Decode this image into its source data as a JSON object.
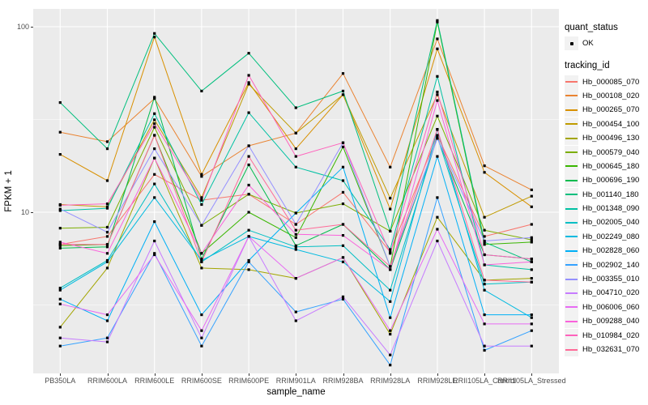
{
  "figure": {
    "background": "#FFFFFF",
    "panel_background": "#EBEBEB",
    "grid_color": "#FFFFFF",
    "tick_label_color": "#4D4D4D",
    "marker_color": "#000000",
    "legend_key_background": "#F2F2F2"
  },
  "legend": {
    "position": "right",
    "quant_status": {
      "title": "quant_status",
      "items": [
        {
          "label": "OK",
          "marker": "black-point"
        }
      ]
    },
    "tracking_id": {
      "title": "tracking_id"
    }
  },
  "chart_data": {
    "type": "line",
    "title": "",
    "xlabel": "sample_name",
    "ylabel": "FPKM + 1",
    "grid": true,
    "legend_position": "right",
    "marker": "black point at every vertex (quant_status = OK)",
    "x_categories": [
      "PB350LA",
      "RRIM600LA",
      "RRIM600LE",
      "RRIM600SE",
      "RRIM600PE",
      "RRIM901LA",
      "RRIM928BA",
      "RRIM928LA",
      "RRIM928LE",
      "RRII105LA_Control",
      "RRII105LA_Stressed"
    ],
    "y_axis": {
      "scale": "log10",
      "ticks": [
        {
          "label": "10",
          "value": 10
        },
        {
          "label": "100",
          "value": 100
        }
      ],
      "minor_gridlines": [
        3.1623,
        31.6228
      ],
      "range_approx": [
        1.35,
        125
      ]
    },
    "series": [
      {
        "name": "Hb_000085_070",
        "color": "#F8766D",
        "values": [
          6.7,
          7.4,
          16.0,
          11.6,
          12.5,
          8.6,
          12.8,
          6.1,
          26.0,
          7.4,
          8.6
        ]
      },
      {
        "name": "Hb_000108_020",
        "color": "#EA8331",
        "values": [
          27.0,
          24.0,
          41.0,
          15.6,
          22.8,
          26.7,
          56.0,
          17.5,
          86.0,
          17.8,
          13.2
        ]
      },
      {
        "name": "Hb_000265_070",
        "color": "#D89000",
        "values": [
          20.5,
          14.8,
          88.0,
          16.0,
          50.0,
          22.0,
          43.0,
          10.4,
          76.0,
          16.4,
          10.7
        ]
      },
      {
        "name": "Hb_000454_100",
        "color": "#C09B00",
        "values": [
          11.0,
          10.7,
          31.5,
          12.0,
          49.0,
          26.7,
          43.0,
          11.9,
          43.0,
          9.4,
          12.2
        ]
      },
      {
        "name": "Hb_000496_130",
        "color": "#A3A500",
        "values": [
          2.4,
          5.0,
          19.6,
          5.0,
          4.9,
          4.4,
          5.7,
          2.2,
          9.4,
          4.3,
          4.4
        ]
      },
      {
        "name": "Hb_000579_040",
        "color": "#7CAE00",
        "values": [
          8.2,
          8.3,
          28.7,
          8.5,
          12.5,
          9.9,
          11.1,
          7.9,
          33.0,
          8.0,
          7.1
        ]
      },
      {
        "name": "Hb_000645_180",
        "color": "#39B600",
        "values": [
          6.6,
          6.7,
          26.0,
          6.0,
          10.0,
          7.3,
          22.5,
          5.1,
          106.0,
          6.7,
          6.9
        ]
      },
      {
        "name": "Hb_000696_190",
        "color": "#00BB4E",
        "values": [
          6.4,
          6.5,
          41.7,
          5.6,
          18.0,
          6.6,
          8.6,
          4.9,
          25.2,
          5.9,
          5.6
        ]
      },
      {
        "name": "Hb_001140_180",
        "color": "#00BF7D",
        "values": [
          39.0,
          22.0,
          92.0,
          45.0,
          72.0,
          36.6,
          45.0,
          7.9,
          108.0,
          6.9,
          5.4
        ]
      },
      {
        "name": "Hb_001348_090",
        "color": "#00C1A3",
        "values": [
          10.2,
          10.5,
          34.0,
          11.0,
          34.4,
          17.5,
          14.8,
          6.3,
          54.0,
          5.2,
          4.9
        ]
      },
      {
        "name": "Hb_002005_040",
        "color": "#00BFC4",
        "values": [
          3.9,
          5.5,
          14.2,
          5.4,
          8.0,
          6.5,
          6.6,
          3.8,
          25.6,
          4.1,
          4.2
        ]
      },
      {
        "name": "Hb_002249_080",
        "color": "#00BAE0",
        "values": [
          3.8,
          5.4,
          12.0,
          5.5,
          7.4,
          6.3,
          5.4,
          3.3,
          27.9,
          3.8,
          2.7
        ]
      },
      {
        "name": "Hb_002828_060",
        "color": "#00B0F6",
        "values": [
          3.4,
          2.6,
          8.9,
          2.8,
          5.5,
          9.9,
          17.5,
          2.7,
          20.0,
          2.8,
          2.8
        ]
      },
      {
        "name": "Hb_002902_140",
        "color": "#35A2FF",
        "values": [
          1.9,
          2.1,
          6.0,
          1.9,
          5.4,
          2.9,
          3.4,
          1.5,
          12.0,
          1.8,
          2.3
        ]
      },
      {
        "name": "Hb_003355_010",
        "color": "#9590FF",
        "values": [
          10.4,
          7.8,
          22.0,
          8.5,
          22.8,
          8.6,
          23.7,
          5.1,
          25.0,
          7.0,
          7.3
        ]
      },
      {
        "name": "Hb_004710_020",
        "color": "#C77CFF",
        "values": [
          2.1,
          2.0,
          7.0,
          2.1,
          7.4,
          2.6,
          3.5,
          1.7,
          7.0,
          1.9,
          1.9
        ]
      },
      {
        "name": "Hb_006006_060",
        "color": "#E76BF3",
        "values": [
          3.2,
          2.8,
          5.9,
          2.3,
          7.4,
          4.4,
          5.7,
          2.3,
          8.1,
          2.5,
          2.5
        ]
      },
      {
        "name": "Hb_009288_040",
        "color": "#FA62DB",
        "values": [
          6.9,
          6.0,
          19.6,
          6.0,
          14.0,
          7.6,
          7.5,
          4.9,
          40.0,
          5.2,
          5.4
        ]
      },
      {
        "name": "Hb_010984_020",
        "color": "#FF62BC",
        "values": [
          10.9,
          11.1,
          30.0,
          11.6,
          54.7,
          20.0,
          23.7,
          6.0,
          44.5,
          5.9,
          5.6
        ]
      },
      {
        "name": "Hb_032631_070",
        "color": "#FF6A98",
        "values": [
          6.7,
          6.7,
          26.0,
          5.4,
          20.0,
          8.0,
          8.6,
          5.1,
          28.0,
          4.3,
          4.2
        ]
      }
    ]
  }
}
